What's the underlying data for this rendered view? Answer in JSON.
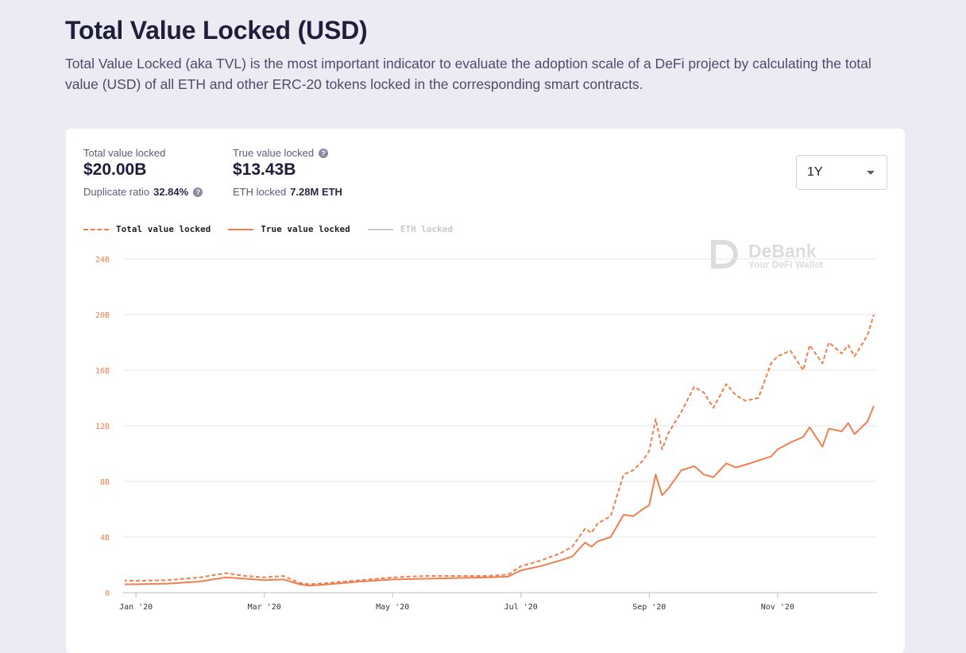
{
  "header": {
    "title": "Total Value Locked (USD)",
    "description": "Total Value Locked (aka TVL) is the most important indicator to evaluate the adoption scale of a DeFi project by calculating the total value (USD) of all ETH and other ERC-20 tokens locked in the corresponding smart contracts."
  },
  "stats": {
    "total_label": "Total value locked",
    "total_value": "$20.00B",
    "duplicate_label": "Duplicate ratio",
    "duplicate_value": "32.84%",
    "true_label": "True value locked",
    "true_value": "$13.43B",
    "eth_label": "ETH locked",
    "eth_value": "7.28M ETH"
  },
  "range_select": {
    "value": "1Y"
  },
  "watermark": {
    "name": "DeBank",
    "tagline": "Your DeFi Wallet"
  },
  "colors": {
    "accent": "#f07e4e",
    "grid": "#e6e6ea",
    "muted": "#c8c8cc"
  },
  "chart_data": {
    "type": "line",
    "x_tick_labels": [
      "Jan '20",
      "Mar '20",
      "May '20",
      "Jul '20",
      "Sep '20",
      "Nov '20"
    ],
    "x_tick_positions": [
      0,
      2,
      4,
      6,
      8,
      10
    ],
    "y_tick_labels": [
      "0",
      "4B",
      "8B",
      "12B",
      "16B",
      "20B",
      "24B"
    ],
    "ylim": [
      0,
      24
    ],
    "xlim": [
      -0.2,
      11.55
    ],
    "legend_placement": "top-left",
    "series": [
      {
        "name": "Total value locked",
        "style": "dashed",
        "x": [
          -0.3,
          0,
          0.5,
          1,
          1.4,
          1.7,
          2,
          2.3,
          2.55,
          2.7,
          3,
          3.5,
          4,
          4.5,
          5,
          5.5,
          5.8,
          6,
          6.3,
          6.6,
          6.8,
          7,
          7.1,
          7.2,
          7.4,
          7.6,
          7.75,
          7.9,
          8,
          8.1,
          8.2,
          8.3,
          8.5,
          8.7,
          8.85,
          9,
          9.2,
          9.35,
          9.5,
          9.7,
          9.9,
          10,
          10.2,
          10.4,
          10.5,
          10.7,
          10.8,
          11,
          11.1,
          11.2,
          11.4,
          11.5
        ],
        "y": [
          0.9,
          0.85,
          0.9,
          1.1,
          1.4,
          1.2,
          1.1,
          1.2,
          0.7,
          0.6,
          0.7,
          0.9,
          1.1,
          1.2,
          1.2,
          1.2,
          1.3,
          1.9,
          2.3,
          2.8,
          3.3,
          4.6,
          4.3,
          5.0,
          5.5,
          8.5,
          8.8,
          9.5,
          10.2,
          12.5,
          10.3,
          11.5,
          13.0,
          14.8,
          14.4,
          13.3,
          15.0,
          14.2,
          13.8,
          14.0,
          16.5,
          17.0,
          17.4,
          16.0,
          17.8,
          16.5,
          18.0,
          17.2,
          17.8,
          17.0,
          18.5,
          20.0
        ]
      },
      {
        "name": "True value locked",
        "style": "solid",
        "x": [
          -0.3,
          0,
          0.5,
          1,
          1.4,
          1.7,
          2,
          2.3,
          2.55,
          2.7,
          3,
          3.5,
          4,
          4.5,
          5,
          5.5,
          5.8,
          6,
          6.3,
          6.6,
          6.8,
          7,
          7.1,
          7.2,
          7.4,
          7.6,
          7.75,
          7.9,
          8,
          8.1,
          8.2,
          8.3,
          8.5,
          8.7,
          8.85,
          9,
          9.2,
          9.35,
          9.5,
          9.7,
          9.9,
          10,
          10.2,
          10.4,
          10.5,
          10.7,
          10.8,
          11,
          11.1,
          11.2,
          11.4,
          11.5
        ],
        "y": [
          0.6,
          0.6,
          0.65,
          0.8,
          1.1,
          1.0,
          0.9,
          0.95,
          0.6,
          0.5,
          0.6,
          0.8,
          0.95,
          1.0,
          1.05,
          1.1,
          1.15,
          1.6,
          1.9,
          2.3,
          2.6,
          3.6,
          3.3,
          3.7,
          4.0,
          5.6,
          5.5,
          6.0,
          6.3,
          8.5,
          7.0,
          7.5,
          8.8,
          9.1,
          8.5,
          8.3,
          9.3,
          9.0,
          9.2,
          9.5,
          9.8,
          10.3,
          10.8,
          11.2,
          11.9,
          10.5,
          11.8,
          11.6,
          12.2,
          11.4,
          12.3,
          13.43
        ]
      },
      {
        "name": "ETH locked",
        "style": "solid",
        "hidden": true,
        "x": [],
        "y": []
      }
    ]
  }
}
